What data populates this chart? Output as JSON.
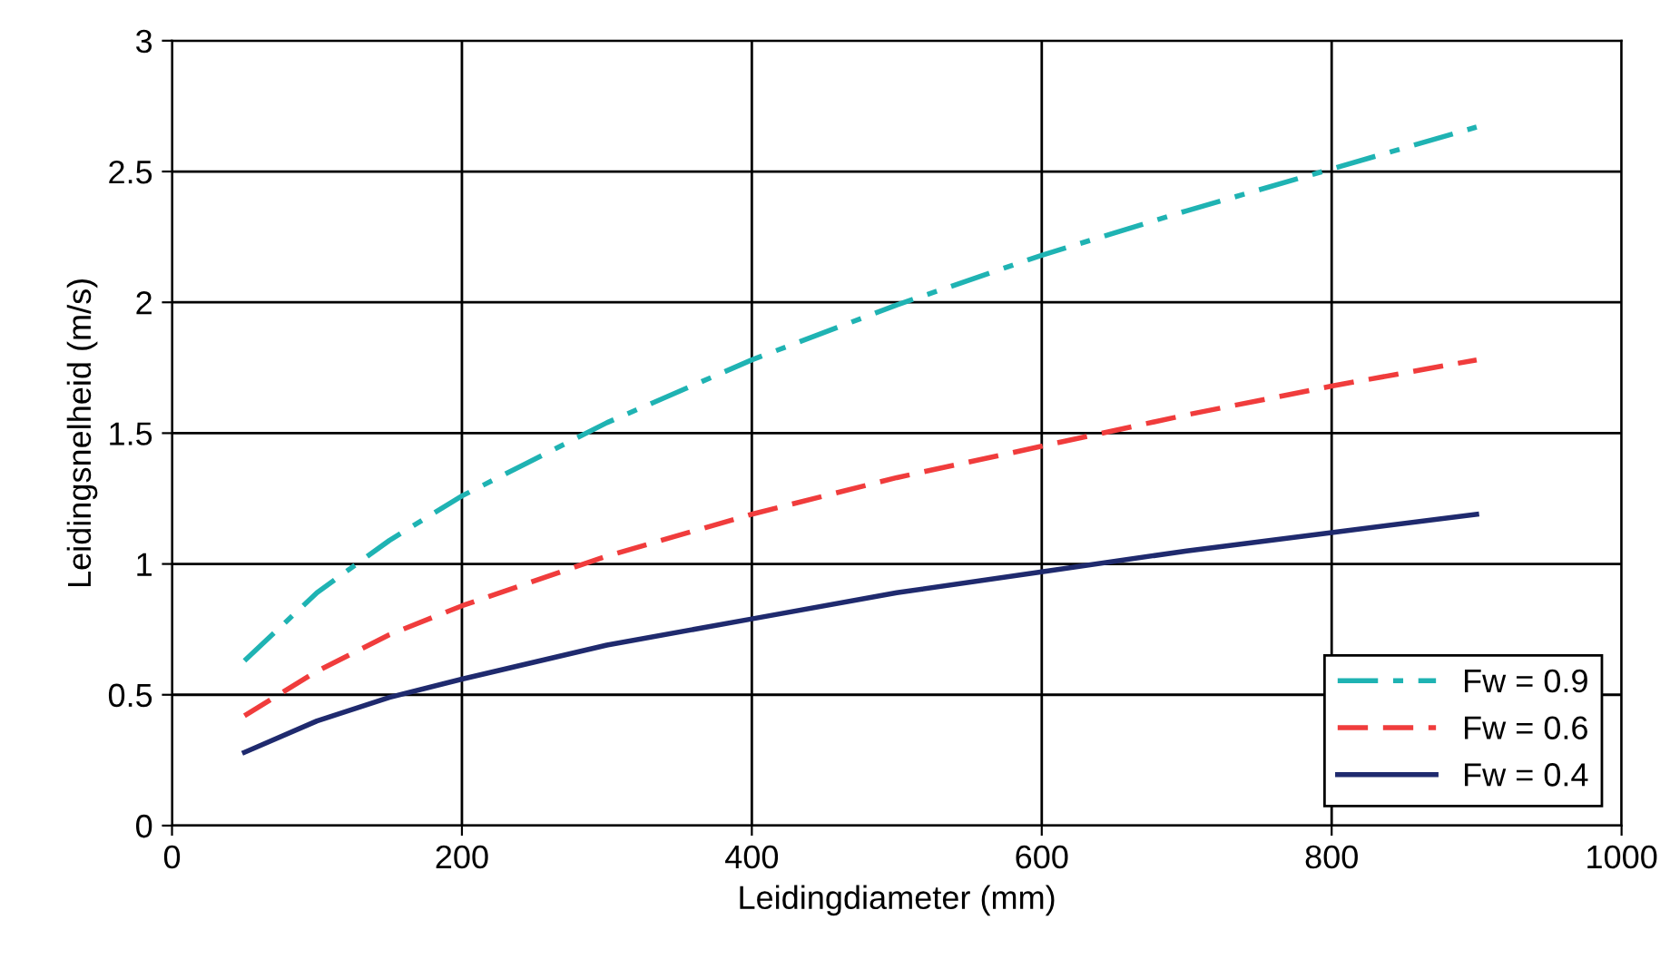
{
  "chart_data": {
    "type": "line",
    "xlabel": "Leidingdiameter (mm)",
    "ylabel": "Leidingsnelheid (m/s)",
    "xlim": [
      0,
      1000
    ],
    "xticks": [
      0,
      200,
      400,
      600,
      800,
      1000
    ],
    "ylim": [
      0,
      3
    ],
    "yticks": [
      0,
      0.5,
      1,
      1.5,
      2,
      2.5,
      3
    ],
    "grid": true,
    "legend": "bottom right",
    "marker": "none",
    "series": [
      {
        "name": "Fw = 0.9",
        "color": "#1fb3b3",
        "line_style": "dashdot",
        "x": [
          50,
          100,
          150,
          200,
          300,
          400,
          500,
          600,
          700,
          800,
          900
        ],
        "values": [
          0.63,
          0.89,
          1.09,
          1.26,
          1.54,
          1.78,
          1.99,
          2.18,
          2.35,
          2.51,
          2.67
        ]
      },
      {
        "name": "Fw = 0.6",
        "color": "#f03c3c",
        "line_style": "dashed",
        "x": [
          50,
          100,
          150,
          200,
          300,
          400,
          500,
          600,
          700,
          800,
          900
        ],
        "values": [
          0.42,
          0.59,
          0.73,
          0.84,
          1.03,
          1.19,
          1.33,
          1.45,
          1.57,
          1.68,
          1.78
        ]
      },
      {
        "name": "Fw = 0.4",
        "color": "#1f2a6e",
        "line_style": "solid",
        "x": [
          50,
          100,
          150,
          200,
          300,
          400,
          500,
          600,
          700,
          800,
          900
        ],
        "values": [
          0.28,
          0.4,
          0.49,
          0.56,
          0.69,
          0.79,
          0.89,
          0.97,
          1.05,
          1.12,
          1.19
        ]
      }
    ]
  }
}
